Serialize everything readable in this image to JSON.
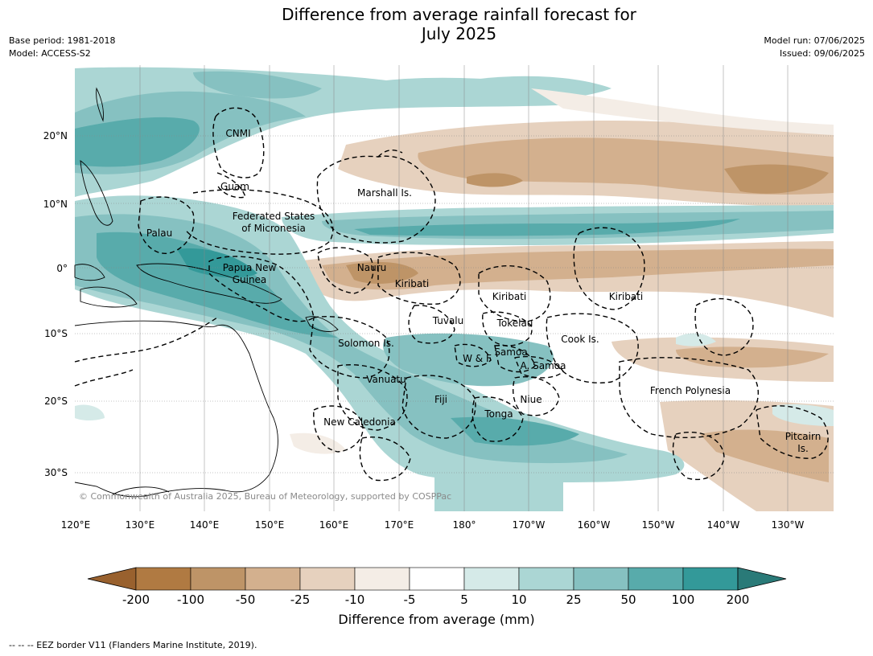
{
  "title_line1": "Difference from average rainfall forecast for",
  "title_line2": "July 2025",
  "base_period": "Base period: 1981-2018",
  "model": "Model: ACCESS-S2",
  "model_run": "Model run: 07/06/2025",
  "issued": "Issued: 09/06/2025",
  "copyright": "© Commonwealth of Australia 2025, Bureau of Meteorology, supported by COSPPac",
  "footer": "-- -- -- EEZ border V11 (Flanders Marine Institute, 2019).",
  "lat_labels": [
    "20°N",
    "10°N",
    "0°",
    "10°S",
    "20°S",
    "30°S"
  ],
  "lon_labels": [
    "120°E",
    "130°E",
    "140°E",
    "150°E",
    "160°E",
    "170°E",
    "180°",
    "170°W",
    "160°W",
    "150°W",
    "140°W",
    "130°W"
  ],
  "colorbar": {
    "title": "Difference from average (mm)",
    "ticks": [
      "-200",
      "-100",
      "-50",
      "-25",
      "-10",
      "-5",
      "5",
      "10",
      "25",
      "50",
      "100",
      "200"
    ],
    "colors": [
      "#99612e",
      "#b07a42",
      "#be9467",
      "#d3b08e",
      "#e6d1be",
      "#f4ede6",
      "#ffffff",
      "#d5eae8",
      "#abd6d4",
      "#86c1c1",
      "#58abab",
      "#339999",
      "#2a7a78"
    ]
  },
  "place_labels": [
    "CNMI",
    "Guam",
    "Marshall Is.",
    "Federated States",
    "of Micronesia",
    "Palau",
    "Papua New",
    "Guinea",
    "Nauru",
    "Kiribati",
    "Kiribati",
    "Kiribati",
    "Tuvalu",
    "Tokelau",
    "Cook Is.",
    "Solomon Is.",
    "W & F",
    "Samoa",
    "A. Samoa",
    "Vanuatu",
    "Fiji",
    "Niue",
    "Tonga",
    "French Polynesia",
    "New Caledonia",
    "Pitcairn",
    "Is."
  ]
}
